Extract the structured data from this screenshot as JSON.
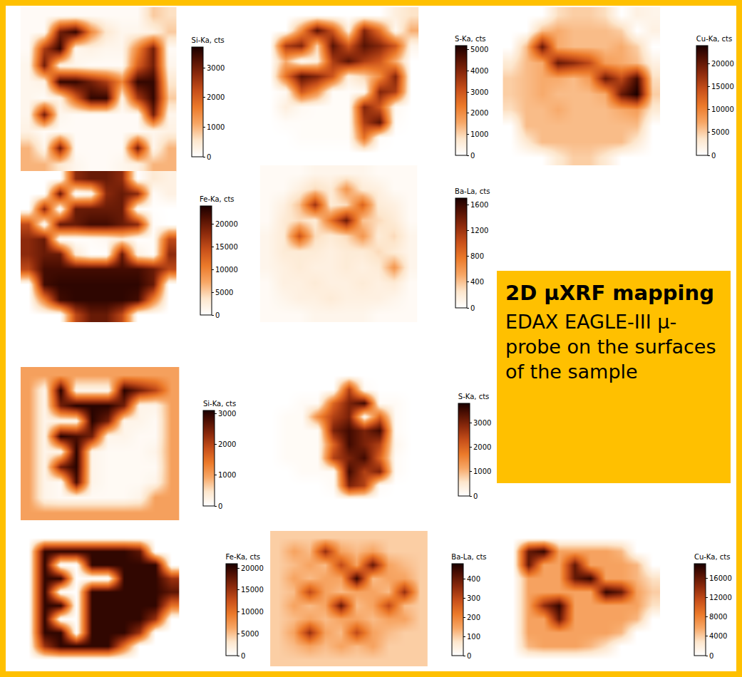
{
  "chart_data": [
    {
      "type": "heatmap",
      "title": "Si-Ka, cts",
      "tick_labels": false,
      "zlim": [
        0,
        3700
      ],
      "zticks": [
        0,
        1000,
        2000,
        3000
      ],
      "z": [
        [
          100,
          100,
          100,
          100,
          100,
          100,
          100,
          100,
          800,
          600
        ],
        [
          100,
          100,
          3000,
          3500,
          1500,
          500,
          200,
          200,
          300,
          800
        ],
        [
          100,
          2500,
          3500,
          200,
          300,
          200,
          200,
          1500,
          3000,
          100
        ],
        [
          200,
          3000,
          300,
          200,
          100,
          100,
          100,
          2000,
          3000,
          200
        ],
        [
          200,
          300,
          3500,
          3500,
          3000,
          2500,
          1500,
          3500,
          3500,
          500
        ],
        [
          200,
          100,
          300,
          2000,
          3500,
          3500,
          300,
          2500,
          3500,
          800
        ],
        [
          200,
          3000,
          200,
          100,
          100,
          100,
          100,
          100,
          3000,
          200
        ],
        [
          300,
          100,
          100,
          100,
          100,
          100,
          100,
          100,
          200,
          300
        ],
        [
          1000,
          200,
          3000,
          100,
          100,
          100,
          100,
          3000,
          200,
          1000
        ],
        [
          1000,
          1000,
          500,
          200,
          100,
          100,
          200,
          300,
          1000,
          1000
        ]
      ]
    },
    {
      "type": "heatmap",
      "title": "S-Ka, cts",
      "tick_labels": false,
      "zlim": [
        0,
        5200
      ],
      "zticks": [
        0,
        1000,
        2000,
        3000,
        4000,
        5000
      ],
      "z": [
        [
          0,
          0,
          0,
          0,
          0,
          0,
          0,
          0,
          500,
          800
        ],
        [
          0,
          0,
          2000,
          4500,
          3000,
          500,
          4000,
          2500,
          200,
          1500
        ],
        [
          0,
          3500,
          4000,
          1000,
          4500,
          3000,
          4500,
          4000,
          3000,
          300
        ],
        [
          0,
          1500,
          200,
          500,
          3500,
          4500,
          3500,
          3000,
          1500,
          0
        ],
        [
          0,
          2500,
          4500,
          4000,
          3000,
          500,
          1000,
          2000,
          4000,
          0
        ],
        [
          0,
          200,
          3000,
          2000,
          100,
          100,
          200,
          4000,
          3500,
          0
        ],
        [
          0,
          500,
          200,
          100,
          100,
          100,
          4000,
          3000,
          200,
          0
        ],
        [
          0,
          100,
          100,
          100,
          100,
          100,
          3500,
          4500,
          100,
          0
        ],
        [
          0,
          0,
          100,
          100,
          100,
          100,
          2500,
          100,
          0,
          0
        ],
        [
          0,
          0,
          0,
          0,
          0,
          0,
          0,
          0,
          0,
          0
        ]
      ]
    },
    {
      "type": "heatmap",
      "title": "Cu-Ka, cts",
      "tick_labels": false,
      "zlim": [
        0,
        24000
      ],
      "zticks": [
        0,
        5000,
        10000,
        15000,
        20000
      ],
      "z": [
        [
          0,
          0,
          0,
          4000,
          5000,
          5000,
          4000,
          0,
          2000,
          1500
        ],
        [
          0,
          0,
          6000,
          7000,
          6000,
          6000,
          6000,
          5000,
          0,
          2000
        ],
        [
          0,
          6000,
          20000,
          7000,
          6000,
          6000,
          6000,
          7000,
          5000,
          0
        ],
        [
          3000,
          6000,
          7000,
          20000,
          18000,
          15000,
          8000,
          7000,
          6000,
          2000
        ],
        [
          5000,
          6000,
          7000,
          7000,
          6000,
          8000,
          20000,
          15000,
          22000,
          4000
        ],
        [
          5000,
          6000,
          7000,
          6000,
          6000,
          6000,
          7000,
          20000,
          24000,
          5000
        ],
        [
          4000,
          6000,
          6000,
          7000,
          6000,
          6000,
          6000,
          7000,
          8000,
          3000
        ],
        [
          0,
          6000,
          6000,
          6000,
          6000,
          6000,
          6000,
          6000,
          6000,
          0
        ],
        [
          0,
          3000,
          6000,
          6000,
          6000,
          6000,
          6000,
          6000,
          3000,
          0
        ],
        [
          0,
          0,
          0,
          3000,
          5000,
          5000,
          3000,
          0,
          0,
          0
        ]
      ]
    },
    {
      "type": "heatmap",
      "title": "Fe-Ka, cts",
      "tick_labels": false,
      "zlim": [
        0,
        24000
      ],
      "zticks": [
        0,
        5000,
        10000,
        15000,
        20000
      ],
      "z": [
        [
          0,
          0,
          0,
          18000,
          20000,
          20000,
          18000,
          0,
          3000,
          2000
        ],
        [
          0,
          0,
          20000,
          200,
          1000,
          18000,
          20000,
          18000,
          500,
          2000
        ],
        [
          0,
          18000,
          300,
          20000,
          20000,
          20000,
          20000,
          500,
          200,
          0
        ],
        [
          15000,
          500,
          20000,
          20000,
          22000,
          22000,
          20000,
          18000,
          500,
          0
        ],
        [
          18000,
          20000,
          300,
          200,
          500,
          1000,
          3000,
          200,
          500,
          15000
        ],
        [
          18000,
          20000,
          20000,
          3000,
          200,
          200,
          20000,
          2000,
          300,
          18000
        ],
        [
          15000,
          22000,
          22000,
          22000,
          22000,
          22000,
          22000,
          22000,
          20000,
          15000
        ],
        [
          0,
          22000,
          23000,
          23000,
          23000,
          23000,
          23000,
          23000,
          20000,
          0
        ],
        [
          0,
          10000,
          22000,
          23000,
          23000,
          23000,
          23000,
          22000,
          10000,
          0
        ],
        [
          0,
          0,
          0,
          15000,
          20000,
          20000,
          15000,
          0,
          0,
          0
        ]
      ]
    },
    {
      "type": "heatmap",
      "title": "Ba-La, cts",
      "tick_labels": false,
      "zlim": [
        0,
        1700
      ],
      "zticks": [
        0,
        400,
        800,
        1200,
        1600
      ],
      "z": [
        [
          50,
          50,
          50,
          100,
          100,
          100,
          100,
          50,
          50,
          50
        ],
        [
          50,
          50,
          150,
          300,
          200,
          600,
          200,
          150,
          50,
          50
        ],
        [
          50,
          150,
          400,
          1200,
          200,
          300,
          900,
          200,
          150,
          50
        ],
        [
          50,
          200,
          300,
          200,
          800,
          1400,
          400,
          300,
          200,
          50
        ],
        [
          100,
          200,
          1000,
          300,
          200,
          300,
          600,
          200,
          300,
          100
        ],
        [
          100,
          200,
          200,
          200,
          150,
          200,
          200,
          300,
          200,
          100
        ],
        [
          100,
          150,
          200,
          150,
          150,
          200,
          150,
          200,
          600,
          100
        ],
        [
          50,
          150,
          150,
          200,
          150,
          150,
          200,
          150,
          200,
          50
        ],
        [
          50,
          100,
          150,
          150,
          200,
          150,
          150,
          150,
          100,
          50
        ],
        [
          50,
          50,
          50,
          100,
          100,
          100,
          100,
          50,
          50,
          50
        ]
      ]
    },
    {
      "type": "heatmap",
      "title": "Si-Ka, cts",
      "tick_labels": false,
      "zlim": [
        0,
        3100
      ],
      "zticks": [
        0,
        1000,
        2000,
        3000
      ],
      "z": [
        [
          1000,
          1000,
          1000,
          1000,
          1000,
          1000,
          1000,
          1000,
          1000,
          1000
        ],
        [
          1000,
          200,
          3000,
          200,
          200,
          200,
          3000,
          2500,
          2000,
          1000
        ],
        [
          1000,
          200,
          2500,
          3000,
          3000,
          3000,
          2500,
          200,
          200,
          1000
        ],
        [
          1000,
          200,
          200,
          200,
          3000,
          2500,
          200,
          200,
          100,
          1000
        ],
        [
          1000,
          200,
          3000,
          2800,
          2500,
          200,
          200,
          100,
          100,
          1000
        ],
        [
          1000,
          200,
          200,
          3000,
          200,
          100,
          100,
          100,
          200,
          1000
        ],
        [
          1000,
          200,
          2500,
          3000,
          200,
          100,
          100,
          100,
          100,
          1000
        ],
        [
          1000,
          200,
          100,
          2800,
          200,
          100,
          100,
          100,
          200,
          1000
        ],
        [
          1000,
          200,
          100,
          100,
          100,
          100,
          100,
          200,
          1000,
          1000
        ],
        [
          1000,
          1000,
          1000,
          1000,
          1000,
          1000,
          1000,
          1000,
          1000,
          1000
        ]
      ]
    },
    {
      "type": "heatmap",
      "title": "S-Ka, cts",
      "tick_labels": false,
      "zlim": [
        0,
        3800
      ],
      "zticks": [
        0,
        1000,
        2000,
        3000
      ],
      "z": [
        [
          0,
          0,
          0,
          0,
          0,
          0,
          0,
          0,
          0,
          0
        ],
        [
          0,
          0,
          0,
          0,
          0,
          2500,
          100,
          0,
          0,
          0
        ],
        [
          0,
          0,
          100,
          100,
          2000,
          3000,
          3500,
          100,
          100,
          0
        ],
        [
          0,
          100,
          100,
          1500,
          2500,
          3000,
          200,
          2000,
          100,
          0
        ],
        [
          0,
          100,
          100,
          100,
          3000,
          3500,
          3000,
          3500,
          100,
          0
        ],
        [
          0,
          100,
          100,
          100,
          2000,
          3500,
          3000,
          2500,
          200,
          0
        ],
        [
          0,
          100,
          100,
          100,
          2500,
          3000,
          3500,
          2000,
          100,
          0
        ],
        [
          0,
          0,
          100,
          100,
          100,
          3500,
          2500,
          3000,
          100,
          0
        ],
        [
          0,
          0,
          0,
          0,
          100,
          3000,
          2500,
          100,
          0,
          0
        ],
        [
          0,
          0,
          0,
          0,
          0,
          0,
          0,
          0,
          0,
          0
        ]
      ]
    },
    {
      "type": "heatmap",
      "title": "Fe-Ka, cts",
      "tick_labels": false,
      "zlim": [
        0,
        21000
      ],
      "zticks": [
        0,
        5000,
        10000,
        15000,
        20000
      ],
      "z": [
        [
          0,
          0,
          0,
          0,
          0,
          0,
          0,
          0,
          0,
          0
        ],
        [
          0,
          20000,
          20000,
          20000,
          20000,
          20000,
          20000,
          18000,
          0,
          0
        ],
        [
          0,
          20000,
          200,
          200,
          20000,
          20000,
          20000,
          20000,
          20000,
          0
        ],
        [
          0,
          20000,
          20000,
          200,
          200,
          200,
          20000,
          20000,
          20000,
          15000
        ],
        [
          0,
          20000,
          200,
          200,
          20000,
          20000,
          20000,
          20000,
          20000,
          18000
        ],
        [
          0,
          20000,
          20000,
          200,
          20000,
          20000,
          20000,
          20000,
          20000,
          10000
        ],
        [
          0,
          20000,
          200,
          200,
          20000,
          20000,
          20000,
          20000,
          15000,
          0
        ],
        [
          0,
          20000,
          20000,
          200,
          20000,
          20000,
          20000,
          15000,
          0,
          0
        ],
        [
          0,
          15000,
          20000,
          20000,
          20000,
          20000,
          10000,
          0,
          0,
          0
        ],
        [
          0,
          0,
          0,
          0,
          0,
          0,
          0,
          0,
          0,
          0
        ]
      ]
    },
    {
      "type": "heatmap",
      "title": "Ba-La, cts",
      "tick_labels": false,
      "zlim": [
        0,
        480
      ],
      "zticks": [
        0,
        100,
        200,
        300,
        400
      ],
      "z": [
        [
          100,
          100,
          100,
          100,
          100,
          100,
          100,
          100,
          100,
          100
        ],
        [
          100,
          150,
          120,
          350,
          150,
          120,
          150,
          100,
          100,
          100
        ],
        [
          100,
          120,
          150,
          120,
          300,
          150,
          400,
          150,
          120,
          100
        ],
        [
          100,
          150,
          120,
          150,
          150,
          450,
          120,
          150,
          150,
          100
        ],
        [
          100,
          120,
          300,
          150,
          120,
          150,
          150,
          120,
          350,
          100
        ],
        [
          100,
          150,
          120,
          150,
          400,
          120,
          150,
          300,
          120,
          100
        ],
        [
          100,
          120,
          150,
          120,
          150,
          150,
          120,
          150,
          150,
          100
        ],
        [
          100,
          150,
          350,
          150,
          120,
          300,
          150,
          120,
          100,
          100
        ],
        [
          100,
          120,
          150,
          120,
          150,
          120,
          150,
          100,
          100,
          100
        ],
        [
          100,
          100,
          100,
          100,
          100,
          100,
          100,
          100,
          100,
          100
        ]
      ]
    },
    {
      "type": "heatmap",
      "title": "Cu-Ka, cts",
      "tick_labels": false,
      "zlim": [
        0,
        19000
      ],
      "zticks": [
        0,
        4000,
        8000,
        12000,
        16000
      ],
      "z": [
        [
          0,
          0,
          0,
          0,
          0,
          0,
          0,
          0,
          0,
          0
        ],
        [
          0,
          16000,
          18000,
          6000,
          6000,
          6000,
          6000,
          5000,
          0,
          0
        ],
        [
          0,
          16000,
          6000,
          6000,
          16000,
          6000,
          6000,
          6000,
          5000,
          0
        ],
        [
          0,
          6000,
          6000,
          6000,
          16000,
          18000,
          6000,
          6000,
          5000,
          3000
        ],
        [
          0,
          6000,
          6000,
          6000,
          6000,
          6000,
          18000,
          16000,
          6000,
          4000
        ],
        [
          0,
          6000,
          14000,
          18000,
          6000,
          6000,
          6000,
          6000,
          6000,
          3000
        ],
        [
          0,
          6000,
          6000,
          16000,
          6000,
          6000,
          6000,
          6000,
          5000,
          0
        ],
        [
          0,
          6000,
          6000,
          6000,
          6000,
          6000,
          6000,
          5000,
          0,
          0
        ],
        [
          0,
          5000,
          6000,
          6000,
          6000,
          5000,
          3000,
          0,
          0,
          0
        ],
        [
          0,
          0,
          0,
          0,
          0,
          0,
          0,
          0,
          0,
          0
        ]
      ]
    }
  ],
  "annotation": {
    "title": "2D µXRF mapping",
    "text": "EDAX EAGLE-III µ-probe on the surfaces of the sample"
  }
}
